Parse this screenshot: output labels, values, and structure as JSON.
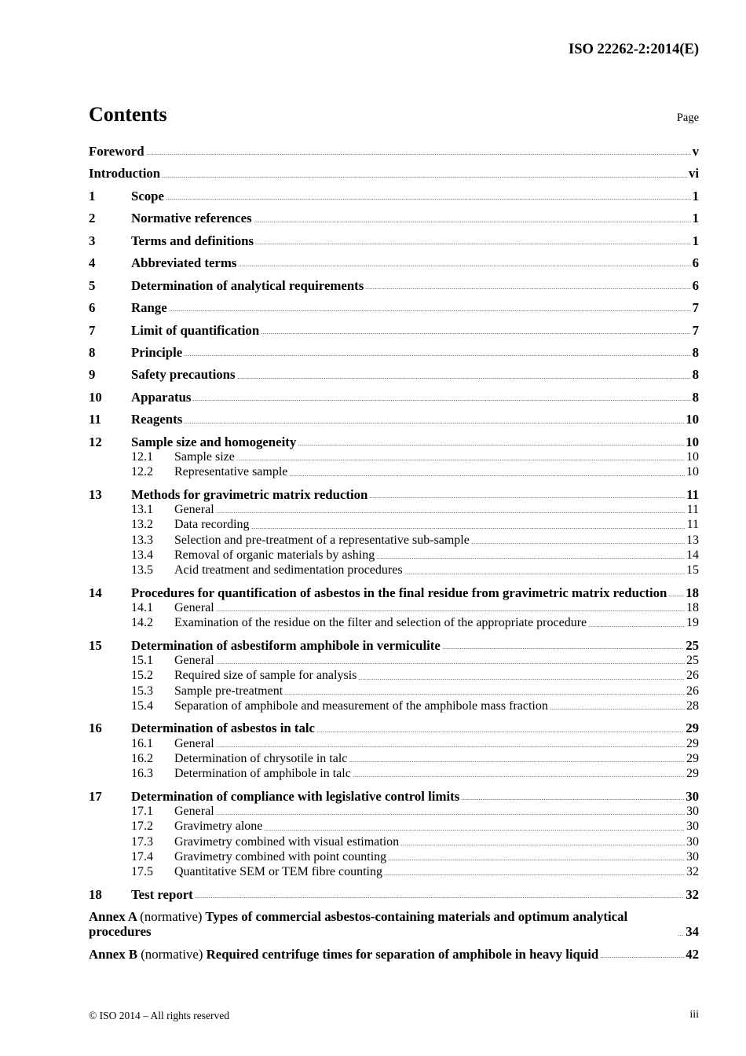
{
  "header": {
    "doc_id": "ISO 22262-2:2014(E)"
  },
  "contents": {
    "title": "Contents",
    "page_label": "Page"
  },
  "entries": [
    {
      "num": "",
      "title": "Foreword",
      "page": "v",
      "subs": []
    },
    {
      "num": "",
      "title": "Introduction",
      "page": "vi",
      "subs": []
    },
    {
      "num": "1",
      "title": "Scope",
      "page": "1",
      "subs": []
    },
    {
      "num": "2",
      "title": "Normative references",
      "page": "1",
      "subs": []
    },
    {
      "num": "3",
      "title": "Terms and definitions",
      "page": "1",
      "subs": []
    },
    {
      "num": "4",
      "title": "Abbreviated terms",
      "page": "6",
      "subs": []
    },
    {
      "num": "5",
      "title": "Determination of analytical requirements",
      "page": "6",
      "subs": []
    },
    {
      "num": "6",
      "title": "Range",
      "page": "7",
      "subs": []
    },
    {
      "num": "7",
      "title": "Limit of quantification",
      "page": "7",
      "subs": []
    },
    {
      "num": "8",
      "title": "Principle",
      "page": "8",
      "subs": []
    },
    {
      "num": "9",
      "title": "Safety precautions",
      "page": "8",
      "subs": []
    },
    {
      "num": "10",
      "title": "Apparatus",
      "page": "8",
      "subs": []
    },
    {
      "num": "11",
      "title": "Reagents",
      "page": "10",
      "subs": []
    },
    {
      "num": "12",
      "title": "Sample size and homogeneity",
      "page": "10",
      "subs": [
        {
          "num": "12.1",
          "title": "Sample size",
          "page": "10"
        },
        {
          "num": "12.2",
          "title": "Representative sample",
          "page": "10"
        }
      ]
    },
    {
      "num": "13",
      "title": "Methods for gravimetric matrix reduction",
      "page": "11",
      "subs": [
        {
          "num": "13.1",
          "title": "General",
          "page": "11"
        },
        {
          "num": "13.2",
          "title": "Data recording",
          "page": "11"
        },
        {
          "num": "13.3",
          "title": "Selection and pre-treatment of a representative sub-sample",
          "page": "13"
        },
        {
          "num": "13.4",
          "title": "Removal of organic materials by ashing",
          "page": "14"
        },
        {
          "num": "13.5",
          "title": "Acid treatment and sedimentation procedures",
          "page": "15"
        }
      ]
    },
    {
      "num": "14",
      "title": "Procedures for quantification of asbestos in the final residue from gravimetric matrix reduction",
      "page": "18",
      "subs": [
        {
          "num": "14.1",
          "title": "General",
          "page": "18"
        },
        {
          "num": "14.2",
          "title": "Examination of the residue on the filter and selection of the appropriate procedure",
          "page": "19"
        }
      ]
    },
    {
      "num": "15",
      "title": "Determination of asbestiform amphibole in vermiculite",
      "page": "25",
      "subs": [
        {
          "num": "15.1",
          "title": "General",
          "page": "25"
        },
        {
          "num": "15.2",
          "title": "Required size of sample for analysis",
          "page": "26"
        },
        {
          "num": "15.3",
          "title": "Sample pre-treatment",
          "page": "26"
        },
        {
          "num": "15.4",
          "title": "Separation of amphibole and measurement of the amphibole mass fraction",
          "page": "28"
        }
      ]
    },
    {
      "num": "16",
      "title": "Determination of asbestos in talc",
      "page": "29",
      "subs": [
        {
          "num": "16.1",
          "title": "General",
          "page": "29"
        },
        {
          "num": "16.2",
          "title": "Determination of chrysotile in talc",
          "page": "29"
        },
        {
          "num": "16.3",
          "title": "Determination of amphibole in talc",
          "page": "29"
        }
      ]
    },
    {
      "num": "17",
      "title": "Determination of compliance with legislative control limits",
      "page": "30",
      "subs": [
        {
          "num": "17.1",
          "title": "General",
          "page": "30"
        },
        {
          "num": "17.2",
          "title": "Gravimetry alone",
          "page": "30"
        },
        {
          "num": "17.3",
          "title": "Gravimetry combined with visual estimation",
          "page": "30"
        },
        {
          "num": "17.4",
          "title": "Gravimetry combined with point counting",
          "page": "30"
        },
        {
          "num": "17.5",
          "title": "Quantitative SEM or TEM fibre counting",
          "page": "32"
        }
      ]
    },
    {
      "num": "18",
      "title": "Test report",
      "page": "32",
      "subs": []
    }
  ],
  "annexes": [
    {
      "label": "Annex A",
      "type": "(normative)",
      "title": "Types of commercial asbestos-containing materials and optimum analytical procedures",
      "page": "34"
    },
    {
      "label": "Annex B",
      "type": "(normative)",
      "title": "Required centrifuge times for separation of amphibole in heavy liquid",
      "page": "42"
    }
  ],
  "footer": {
    "copyright": "© ISO 2014 – All rights reserved",
    "page_number": "iii"
  }
}
